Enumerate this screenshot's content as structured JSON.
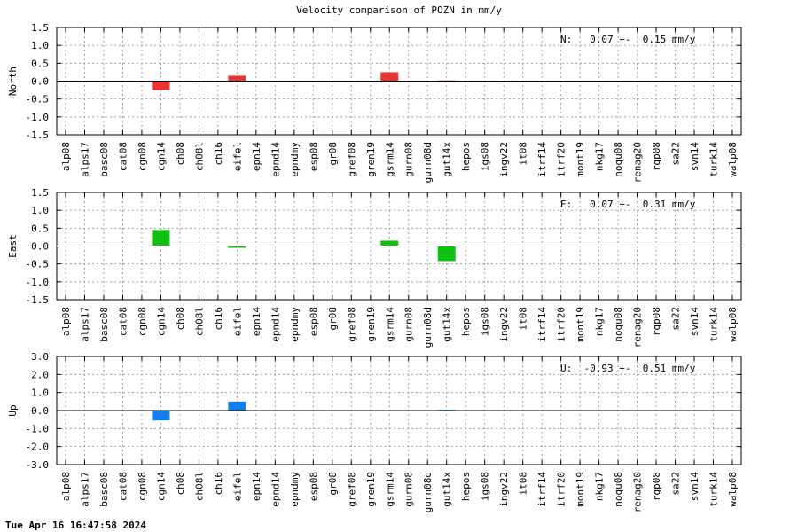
{
  "title": "Velocity comparison of POZN in mm/y",
  "timestamp": "Tue Apr 16 16:47:58 2024",
  "colors": {
    "north": "#e83333",
    "east": "#10c010",
    "up": "#1080f0",
    "grid": "#a0a0a0",
    "axis": "#000000"
  },
  "chart_data": [
    {
      "type": "bar",
      "component": "N",
      "ylabel": "North",
      "ylim": [
        -1.5,
        1.5
      ],
      "yticks": [
        "1.5",
        "1.0",
        "0.5",
        "0.0",
        "-0.5",
        "-1.0",
        "-1.5"
      ],
      "annotation": "N:   0.07 +-  0.15 mm/y",
      "categories": [
        "alp08",
        "alps17",
        "basc08",
        "cat08",
        "cgn08",
        "cgn14",
        "ch08",
        "ch08l",
        "ch16",
        "eifel",
        "epn14",
        "epnd14",
        "epndmy",
        "esp08",
        "gr08",
        "gref08",
        "gren19",
        "gsrm14",
        "gurn08",
        "gurn08d",
        "gut14x",
        "hepos",
        "igs08",
        "ingv22",
        "it08",
        "itrf14",
        "itrf20",
        "mont19",
        "nkg17",
        "noqu08",
        "renag20",
        "rgp08",
        "sa22",
        "svn14",
        "turk14",
        "walp08"
      ],
      "values": [
        0,
        0,
        0,
        0,
        0,
        -0.25,
        0,
        0,
        0,
        0.15,
        0,
        0,
        0,
        0,
        0,
        0,
        0,
        0.25,
        0,
        0,
        0.02,
        0,
        0,
        0,
        0,
        0,
        0,
        0,
        0,
        0,
        0,
        0,
        0,
        0,
        0,
        0
      ],
      "grid": true
    },
    {
      "type": "bar",
      "component": "E",
      "ylabel": "East",
      "ylim": [
        -1.5,
        1.5
      ],
      "yticks": [
        "1.5",
        "1.0",
        "0.5",
        "0.0",
        "-0.5",
        "-1.0",
        "-1.5"
      ],
      "annotation": "E:   0.07 +-  0.31 mm/y",
      "categories": [
        "alp08",
        "alps17",
        "basc08",
        "cat08",
        "cgn08",
        "cgn14",
        "ch08",
        "ch08l",
        "ch16",
        "eifel",
        "epn14",
        "epnd14",
        "epndmy",
        "esp08",
        "gr08",
        "gref08",
        "gren19",
        "gsrm14",
        "gurn08",
        "gurn08d",
        "gut14x",
        "hepos",
        "igs08",
        "ingv22",
        "it08",
        "itrf14",
        "itrf20",
        "mont19",
        "nkg17",
        "noqu08",
        "renag20",
        "rgp08",
        "sa22",
        "svn14",
        "turk14",
        "walp08"
      ],
      "values": [
        0,
        0,
        0,
        0,
        0,
        0.45,
        0,
        0,
        0,
        -0.05,
        0,
        0,
        0,
        0,
        0,
        0,
        0,
        0.15,
        0,
        0,
        -0.42,
        0,
        0,
        0,
        0,
        0,
        0,
        0,
        0,
        0,
        0,
        0,
        0,
        0,
        0,
        0
      ],
      "grid": true
    },
    {
      "type": "bar",
      "component": "U",
      "ylabel": "Up",
      "ylim": [
        -3.0,
        3.0
      ],
      "yticks": [
        "3.0",
        "2.0",
        "1.0",
        "0.0",
        "-1.0",
        "-2.0",
        "-3.0"
      ],
      "annotation": "U:  -0.93 +-  0.51 mm/y",
      "categories": [
        "alp08",
        "alps17",
        "basc08",
        "cat08",
        "cgn08",
        "cgn14",
        "ch08",
        "ch08l",
        "ch16",
        "eifel",
        "epn14",
        "epnd14",
        "epndmy",
        "esp08",
        "gr08",
        "gref08",
        "gren19",
        "gsrm14",
        "gurn08",
        "gurn08d",
        "gut14x",
        "hepos",
        "igs08",
        "ingv22",
        "it08",
        "itrf14",
        "itrf20",
        "mont19",
        "nkg17",
        "noqu08",
        "renag20",
        "rgp08",
        "sa22",
        "svn14",
        "turk14",
        "walp08"
      ],
      "values": [
        0,
        0,
        0,
        0,
        0,
        -0.55,
        0,
        0,
        0,
        0.5,
        0,
        0,
        0,
        0,
        0,
        0,
        0,
        0,
        0,
        0,
        0.04,
        0,
        0,
        0,
        0,
        0,
        0,
        0,
        0,
        0,
        0,
        0,
        0,
        0,
        0,
        0
      ],
      "grid": true
    }
  ]
}
